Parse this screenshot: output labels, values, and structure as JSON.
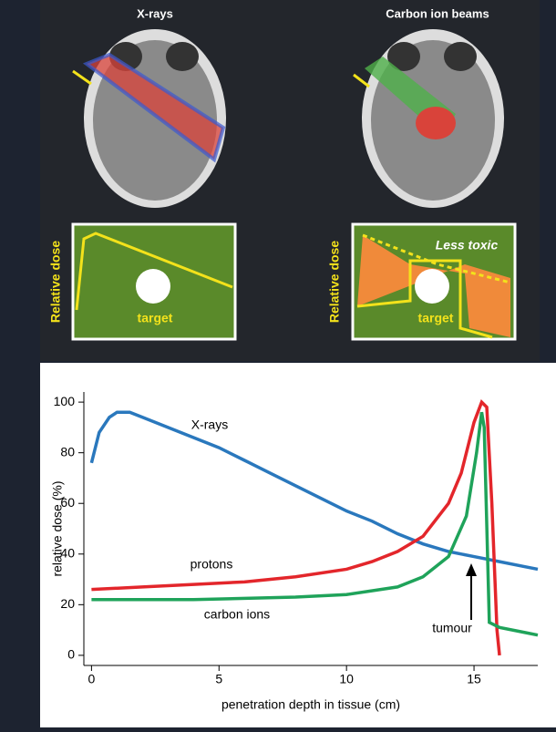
{
  "illustration": {
    "panels": [
      {
        "title": "X-rays",
        "ylabel": "Relative dose",
        "label": "target"
      },
      {
        "title": "Carbon ion beams",
        "ylabel": "Relative dose",
        "label": "target",
        "annotation": "Less toxic"
      }
    ]
  },
  "chart_data": {
    "type": "line",
    "xlabel": "penetration depth in tissue (cm)",
    "ylabel": "relative dose (%)",
    "xlim": [
      -0.3,
      17.5
    ],
    "ylim": [
      -4,
      104
    ],
    "xticks": [
      0,
      5,
      10,
      15
    ],
    "yticks": [
      0,
      20,
      40,
      60,
      80,
      100
    ],
    "series": [
      {
        "name": "X-rays",
        "color": "#2a78bd",
        "x": [
          0,
          0.3,
          0.7,
          1,
          1.5,
          2,
          3,
          4,
          5,
          6,
          7,
          8,
          9,
          10,
          11,
          12,
          13,
          14,
          15,
          16,
          17,
          17.5
        ],
        "values": [
          76,
          88,
          94,
          96,
          96,
          94,
          90,
          86,
          82,
          77,
          72,
          67,
          62,
          57,
          53,
          48,
          44,
          41,
          39,
          37,
          35,
          34
        ]
      },
      {
        "name": "protons",
        "color": "#e3262b",
        "x": [
          0,
          2,
          4,
          6,
          8,
          10,
          11,
          12,
          13,
          14,
          14.5,
          15,
          15.3,
          15.5,
          15.7,
          15.9,
          16
        ],
        "values": [
          26,
          27,
          28,
          29,
          31,
          34,
          37,
          41,
          47,
          60,
          72,
          92,
          100,
          98,
          60,
          10,
          0
        ]
      },
      {
        "name": "carbon ions",
        "color": "#1fa35a",
        "x": [
          0,
          4,
          8,
          10,
          12,
          13,
          14,
          14.7,
          15.1,
          15.3,
          15.4,
          15.6,
          16,
          17,
          17.5
        ],
        "values": [
          22,
          22,
          23,
          24,
          27,
          31,
          39,
          55,
          80,
          96,
          90,
          13,
          11,
          9,
          8
        ]
      }
    ],
    "annotations": [
      "tumour"
    ]
  }
}
